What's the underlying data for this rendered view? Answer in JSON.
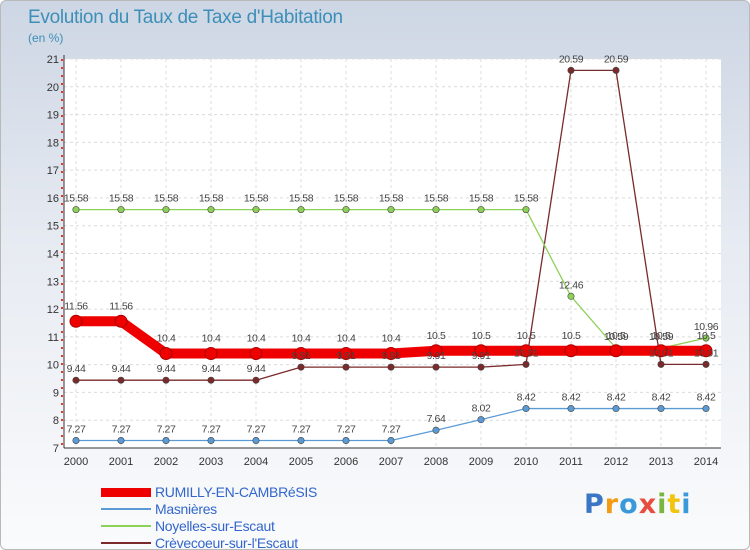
{
  "chart_data": {
    "type": "line",
    "title": "Evolution du Taux de Taxe d'Habitation",
    "unit_label": "(en %)",
    "x": [
      "2000",
      "2001",
      "2002",
      "2003",
      "2004",
      "2005",
      "2006",
      "2007",
      "2008",
      "2009",
      "2010",
      "2011",
      "2012",
      "2013",
      "2014"
    ],
    "ylim": [
      7,
      21
    ],
    "yticks": [
      "7",
      "8",
      "9",
      "10",
      "11",
      "12",
      "13",
      "14",
      "15",
      "16",
      "17",
      "18",
      "19",
      "20",
      "21"
    ],
    "grid": true,
    "legend_position": "bottom-left",
    "series": [
      {
        "name": "RUMILLY-EN-CAMBRéSIS",
        "color": "#ee0000",
        "values": [
          11.56,
          11.56,
          10.4,
          10.4,
          10.4,
          10.4,
          10.4,
          10.4,
          10.5,
          10.5,
          10.5,
          10.5,
          10.5,
          10.5,
          10.5
        ],
        "labels": [
          "11.56",
          "11.56",
          "10.4",
          "10.4",
          "10.4",
          "10.4",
          "10.4",
          "10.4",
          "10.5",
          "10.5",
          "10.5",
          "10.5",
          "10.5",
          "10.5",
          "10.5"
        ]
      },
      {
        "name": "Masnières",
        "color": "#5b9bd5",
        "values": [
          7.27,
          7.27,
          7.27,
          7.27,
          7.27,
          7.27,
          7.27,
          7.27,
          7.64,
          8.02,
          8.42,
          8.42,
          8.42,
          8.42,
          8.42
        ],
        "labels": [
          "7.27",
          "7.27",
          "7.27",
          "7.27",
          "7.27",
          "7.27",
          "7.27",
          "7.27",
          "7.64",
          "8.02",
          "8.42",
          "8.42",
          "8.42",
          "8.42",
          "8.42"
        ]
      },
      {
        "name": "Noyelles-sur-Escaut",
        "color": "#8cd257",
        "values": [
          15.58,
          15.58,
          15.58,
          15.58,
          15.58,
          15.58,
          15.58,
          15.58,
          15.58,
          15.58,
          15.58,
          12.46,
          10.59,
          10.59,
          10.96
        ],
        "labels": [
          "15.58",
          "15.58",
          "15.58",
          "15.58",
          "15.58",
          "15.58",
          "15.58",
          "15.58",
          "15.58",
          "15.58",
          "15.58",
          "12.46",
          "10.59",
          "10.59",
          "10.96"
        ]
      },
      {
        "name": "Crèvecoeur-sur-l'Escaut",
        "color": "#7a2a2a",
        "values": [
          9.44,
          9.44,
          9.44,
          9.44,
          9.44,
          9.91,
          9.91,
          9.91,
          9.91,
          9.91,
          10.01,
          20.59,
          20.59,
          10.01,
          10.01
        ],
        "labels": [
          "9.44",
          "9.44",
          "9.44",
          "9.44",
          "9.44",
          "9.91",
          "9.91",
          "9.91",
          "9.91",
          "9.91",
          "10.01",
          "20.59",
          "20.59",
          "10.01",
          "10.01"
        ]
      }
    ]
  },
  "logo": {
    "letters": [
      "P",
      "r",
      "o",
      "x",
      "i",
      "t",
      "i"
    ],
    "colors": [
      "#3a76c4",
      "#f39c12",
      "#3a9ad9",
      "#e74c3c",
      "#7ab63f",
      "#f1c40f",
      "#3a9ad9"
    ]
  }
}
